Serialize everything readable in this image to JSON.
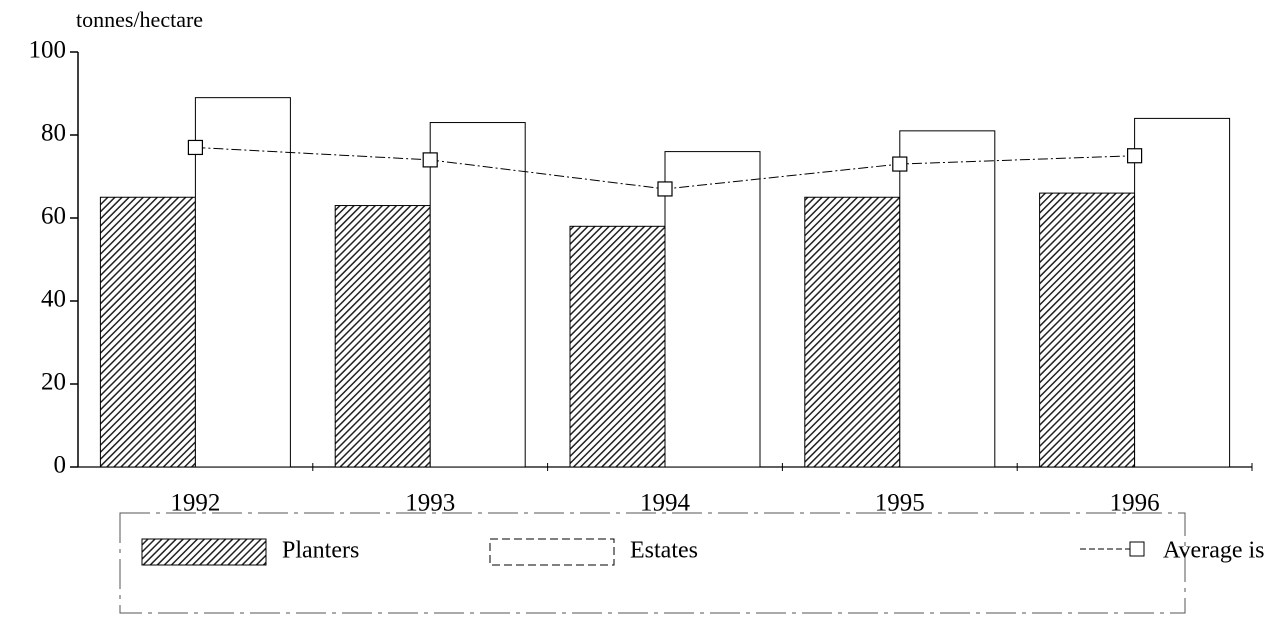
{
  "chart_data": {
    "type": "bar",
    "y_label": "tonnes/hectare",
    "categories": [
      "1992",
      "1993",
      "1994",
      "1995",
      "1996"
    ],
    "series": [
      {
        "name": "Planters",
        "type": "bar",
        "color": "#333333",
        "pattern": "hatch",
        "values": [
          65,
          63,
          58,
          65,
          66
        ]
      },
      {
        "name": "Estates",
        "type": "bar",
        "color": "#ffffff",
        "values": [
          89,
          83,
          76,
          81,
          84
        ]
      },
      {
        "name": "Average island",
        "type": "line",
        "color": "#000000",
        "marker": "square",
        "values": [
          77,
          74,
          67,
          73,
          75
        ]
      }
    ],
    "ylim": [
      0,
      100
    ],
    "yticks": [
      0,
      20,
      40,
      60,
      80,
      100
    ],
    "grid": false,
    "legend": "bottom"
  }
}
